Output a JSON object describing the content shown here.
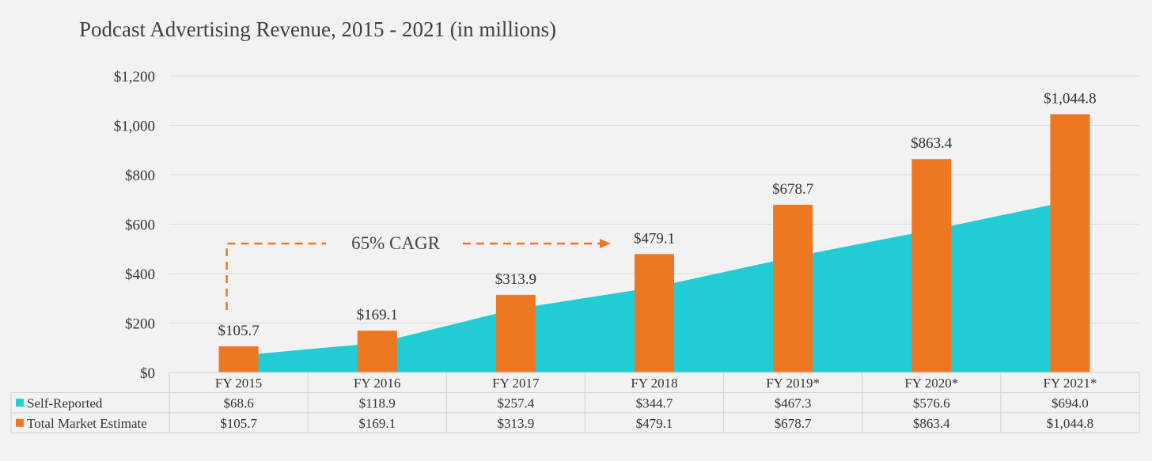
{
  "chart_data": {
    "type": "bar",
    "title": "Podcast Advertising Revenue, 2015 - 2021 (in millions)",
    "categories": [
      "FY 2015",
      "FY 2016",
      "FY 2017",
      "FY 2018",
      "FY 2019*",
      "FY 2020*",
      "FY 2021*"
    ],
    "series": [
      {
        "name": "Self-Reported",
        "render": "area",
        "color": "#22ccd4",
        "values": [
          68.6,
          118.9,
          257.4,
          344.7,
          467.3,
          576.6,
          694.0
        ],
        "table_labels": [
          "$68.6",
          "$118.9",
          "$257.4",
          "$344.7",
          "$467.3",
          "$576.6",
          "$694.0"
        ]
      },
      {
        "name": "Total Market Estimate",
        "render": "bar",
        "color": "#ee7722",
        "values": [
          105.7,
          169.1,
          313.9,
          479.1,
          678.7,
          863.4,
          1044.8
        ],
        "data_labels": [
          "$105.7",
          "$169.1",
          "$313.9",
          "$479.1",
          "$678.7",
          "$863.4",
          "$1,044.8"
        ],
        "table_labels": [
          "$105.7",
          "$169.1",
          "$313.9",
          "$479.1",
          "$678.7",
          "$863.4",
          "$1,044.8"
        ]
      }
    ],
    "y_ticks": [
      0,
      200,
      400,
      600,
      800,
      1000,
      1200
    ],
    "y_tick_labels": [
      "$0",
      "$200",
      "$400",
      "$600",
      "$800",
      "$1,000",
      "$1,200"
    ],
    "ylim": [
      0,
      1200
    ],
    "grid": true,
    "legend": "data-table",
    "annotations": [
      {
        "text": "65% CAGR",
        "style": "dashed-arrow",
        "color": "#ee7722"
      }
    ]
  }
}
